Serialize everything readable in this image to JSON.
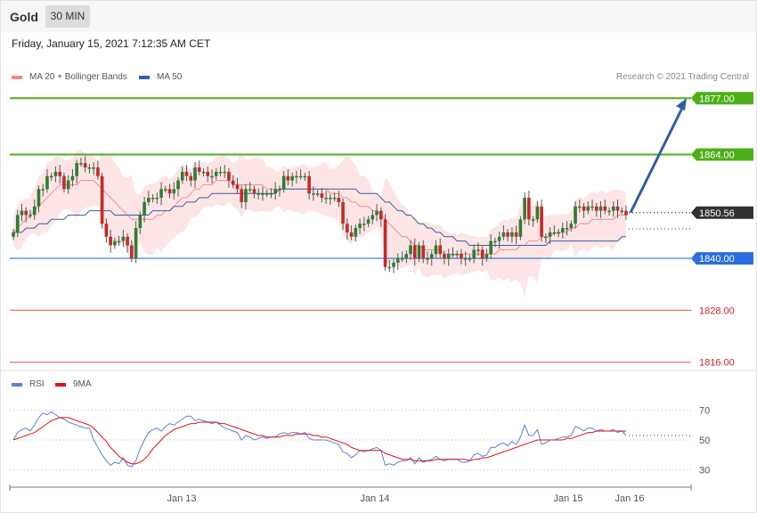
{
  "header": {
    "instrument": "Gold",
    "timeframe": "30 MIN",
    "datetime": "Friday, January 15, 2021 7:12:35 AM CET",
    "credit": "Research © 2021 Trading Central"
  },
  "legend_main": [
    {
      "label": "MA 20 + Bollinger Bands",
      "color": "#f08a84"
    },
    {
      "label": "MA 50",
      "color": "#2f5fa3"
    }
  ],
  "legend_rsi": [
    {
      "label": "RSI",
      "color": "#5b7fd6"
    },
    {
      "label": "9MA",
      "color": "#e01010"
    }
  ],
  "colors": {
    "up_candle": "#2e7d32",
    "down_candle": "#c62828",
    "band_fill": "#fde1e1",
    "ma20": "#f09090",
    "ma50": "#3b5fa3",
    "resistance": "#4caf1a",
    "support_blue": "#2a6de0",
    "support_red": "#e57373",
    "arrow": "#2f5fa3"
  },
  "chart_data": [
    {
      "type": "candlestick",
      "title": "Gold 30 MIN",
      "ylim": [
        1812,
        1882
      ],
      "x_ticks": [
        "Jan 13",
        "Jan 14",
        "Jan 15",
        "Jan 16"
      ],
      "price_levels": [
        {
          "value": 1877.0,
          "label": "1877.00",
          "kind": "resistance"
        },
        {
          "value": 1864.0,
          "label": "1864.00",
          "kind": "resistance"
        },
        {
          "value": 1850.56,
          "label": "1850.56",
          "kind": "last-price"
        },
        {
          "value": 1840.0,
          "label": "1840.00",
          "kind": "pivot"
        },
        {
          "value": 1828.0,
          "label": "1828.00",
          "kind": "support"
        },
        {
          "value": 1816.0,
          "label": "1816.00",
          "kind": "support"
        }
      ],
      "forecast_arrow": {
        "from": 1850.56,
        "to": 1877.0
      },
      "series": [
        {
          "name": "Price (close)",
          "values": [
            1846,
            1850,
            1851,
            1850,
            1850,
            1852,
            1856,
            1856,
            1859,
            1859,
            1860,
            1859,
            1856,
            1858,
            1859,
            1862,
            1862,
            1861,
            1861,
            1861,
            1859,
            1848,
            1845,
            1843,
            1844,
            1844,
            1845,
            1843,
            1840,
            1847,
            1850,
            1853,
            1854,
            1854,
            1854,
            1856,
            1856,
            1855,
            1856,
            1858,
            1860,
            1859,
            1858,
            1861,
            1860,
            1860,
            1859,
            1859,
            1860,
            1860,
            1860,
            1858,
            1857,
            1856,
            1853,
            1856,
            1856,
            1855,
            1855,
            1855,
            1855,
            1855,
            1856,
            1856,
            1859,
            1858,
            1859,
            1859,
            1859,
            1859,
            1855,
            1855,
            1855,
            1854,
            1854,
            1854,
            1854,
            1853,
            1848,
            1846,
            1845,
            1847,
            1848,
            1848,
            1849,
            1850,
            1851,
            1849,
            1838,
            1838,
            1839,
            1840,
            1840,
            1841,
            1843,
            1840,
            1843,
            1840,
            1840,
            1841,
            1843,
            1841,
            1840,
            1841,
            1841,
            1841,
            1840,
            1840,
            1840,
            1842,
            1842,
            1840,
            1841,
            1844,
            1844,
            1845,
            1846,
            1845,
            1846,
            1845,
            1849,
            1854,
            1849,
            1849,
            1852,
            1845,
            1845,
            1846,
            1846,
            1846,
            1847,
            1847,
            1848,
            1852,
            1852,
            1851,
            1852,
            1852,
            1851,
            1852,
            1851,
            1851,
            1852,
            1851,
            1851,
            1850
          ]
        },
        {
          "name": "MA 20",
          "values": [
            1846,
            1847,
            1848,
            1849,
            1850,
            1851,
            1852,
            1853,
            1854,
            1855,
            1856,
            1857,
            1857,
            1857,
            1857,
            1857,
            1858,
            1858,
            1858,
            1858,
            1857,
            1856,
            1855,
            1854,
            1853,
            1852,
            1851,
            1850,
            1849,
            1849,
            1849,
            1849,
            1849,
            1849,
            1850,
            1850,
            1851,
            1851,
            1852,
            1853,
            1854,
            1854,
            1855,
            1856,
            1856,
            1857,
            1857,
            1857,
            1858,
            1858,
            1858,
            1858,
            1857,
            1857,
            1857,
            1857,
            1857,
            1857,
            1857,
            1857,
            1856,
            1856,
            1856,
            1856,
            1856,
            1856,
            1856,
            1856,
            1856,
            1856,
            1856,
            1856,
            1856,
            1856,
            1856,
            1855,
            1855,
            1855,
            1854,
            1854,
            1853,
            1853,
            1852,
            1852,
            1852,
            1851,
            1851,
            1850,
            1849,
            1848,
            1847,
            1846,
            1845,
            1845,
            1844,
            1843,
            1843,
            1842,
            1842,
            1842,
            1842,
            1842,
            1841,
            1841,
            1841,
            1841,
            1841,
            1841,
            1841,
            1841,
            1841,
            1841,
            1841,
            1841,
            1841,
            1842,
            1842,
            1842,
            1842,
            1842,
            1843,
            1843,
            1844,
            1844,
            1844,
            1845,
            1845,
            1845,
            1846,
            1846,
            1846,
            1846,
            1847,
            1847,
            1848,
            1848,
            1848,
            1849,
            1849,
            1849,
            1849,
            1849,
            1849,
            1850,
            1850,
            1850
          ]
        },
        {
          "name": "MA 50",
          "values": [
            1846,
            1846,
            1846,
            1847,
            1847,
            1847,
            1848,
            1848,
            1848,
            1849,
            1849,
            1849,
            1849,
            1850,
            1850,
            1850,
            1850,
            1850,
            1851,
            1851,
            1851,
            1851,
            1851,
            1851,
            1850,
            1850,
            1850,
            1850,
            1850,
            1850,
            1850,
            1850,
            1850,
            1851,
            1851,
            1851,
            1851,
            1851,
            1852,
            1852,
            1852,
            1853,
            1853,
            1853,
            1854,
            1854,
            1854,
            1855,
            1855,
            1855,
            1855,
            1855,
            1855,
            1855,
            1855,
            1855,
            1855,
            1855,
            1855,
            1855,
            1855,
            1855,
            1855,
            1856,
            1856,
            1856,
            1856,
            1856,
            1856,
            1856,
            1856,
            1856,
            1856,
            1856,
            1856,
            1856,
            1856,
            1856,
            1856,
            1856,
            1856,
            1856,
            1855,
            1855,
            1855,
            1855,
            1855,
            1854,
            1853,
            1853,
            1852,
            1851,
            1851,
            1850,
            1850,
            1849,
            1848,
            1848,
            1847,
            1847,
            1846,
            1846,
            1845,
            1845,
            1845,
            1844,
            1844,
            1844,
            1843,
            1843,
            1843,
            1843,
            1843,
            1843,
            1843,
            1843,
            1843,
            1843,
            1843,
            1843,
            1843,
            1843,
            1843,
            1843,
            1843,
            1843,
            1843,
            1844,
            1844,
            1844,
            1844,
            1844,
            1844,
            1844,
            1844,
            1844,
            1844,
            1844,
            1844,
            1844,
            1844,
            1844,
            1844,
            1844,
            1845,
            1845
          ]
        }
      ]
    },
    {
      "type": "line",
      "title": "RSI",
      "ylim": [
        20,
        80
      ],
      "y_ticks": [
        70,
        50,
        30
      ],
      "series": [
        {
          "name": "RSI",
          "values": [
            50,
            55,
            57,
            58,
            56,
            60,
            65,
            68,
            67,
            69,
            67,
            65,
            64,
            62,
            61,
            60,
            59,
            58,
            58,
            50,
            45,
            40,
            36,
            33,
            35,
            34,
            38,
            33,
            32,
            36,
            44,
            50,
            55,
            57,
            58,
            56,
            59,
            61,
            60,
            62,
            64,
            66,
            66,
            63,
            64,
            63,
            62,
            61,
            62,
            60,
            58,
            57,
            56,
            55,
            50,
            53,
            52,
            50,
            51,
            52,
            51,
            52,
            52,
            54,
            55,
            54,
            55,
            55,
            54,
            55,
            51,
            50,
            50,
            50,
            50,
            49,
            48,
            47,
            42,
            41,
            38,
            40,
            43,
            42,
            43,
            44,
            45,
            43,
            33,
            34,
            33,
            35,
            36,
            36,
            38,
            34,
            38,
            35,
            36,
            37,
            39,
            37,
            36,
            37,
            37,
            37,
            35,
            35,
            36,
            40,
            41,
            39,
            40,
            45,
            45,
            47,
            48,
            46,
            49,
            47,
            52,
            60,
            53,
            53,
            57,
            47,
            48,
            50,
            50,
            51,
            52,
            52,
            53,
            59,
            58,
            56,
            58,
            58,
            56,
            57,
            56,
            56,
            57,
            55,
            56,
            53
          ]
        },
        {
          "name": "9MA",
          "values": [
            50,
            51,
            52,
            53,
            54,
            55,
            57,
            59,
            61,
            63,
            64,
            65,
            65,
            65,
            64,
            63,
            62,
            61,
            60,
            58,
            55,
            52,
            49,
            45,
            42,
            39,
            37,
            35,
            34,
            34,
            35,
            37,
            40,
            44,
            47,
            50,
            53,
            55,
            57,
            58,
            59,
            60,
            61,
            61,
            62,
            62,
            62,
            62,
            62,
            61,
            61,
            60,
            59,
            58,
            57,
            56,
            55,
            54,
            53,
            53,
            52,
            52,
            52,
            52,
            53,
            53,
            53,
            54,
            54,
            54,
            54,
            53,
            53,
            52,
            52,
            51,
            50,
            49,
            48,
            47,
            45,
            44,
            43,
            43,
            43,
            43,
            43,
            43,
            41,
            40,
            39,
            38,
            37,
            37,
            37,
            36,
            36,
            36,
            36,
            36,
            37,
            37,
            37,
            37,
            37,
            37,
            37,
            37,
            36,
            37,
            37,
            38,
            38,
            39,
            40,
            41,
            42,
            43,
            44,
            45,
            46,
            47,
            48,
            49,
            50,
            50,
            50,
            50,
            50,
            50,
            50,
            51,
            51,
            52,
            53,
            54,
            55,
            55,
            56,
            56,
            56,
            56,
            56,
            56,
            56,
            56
          ]
        }
      ]
    }
  ]
}
